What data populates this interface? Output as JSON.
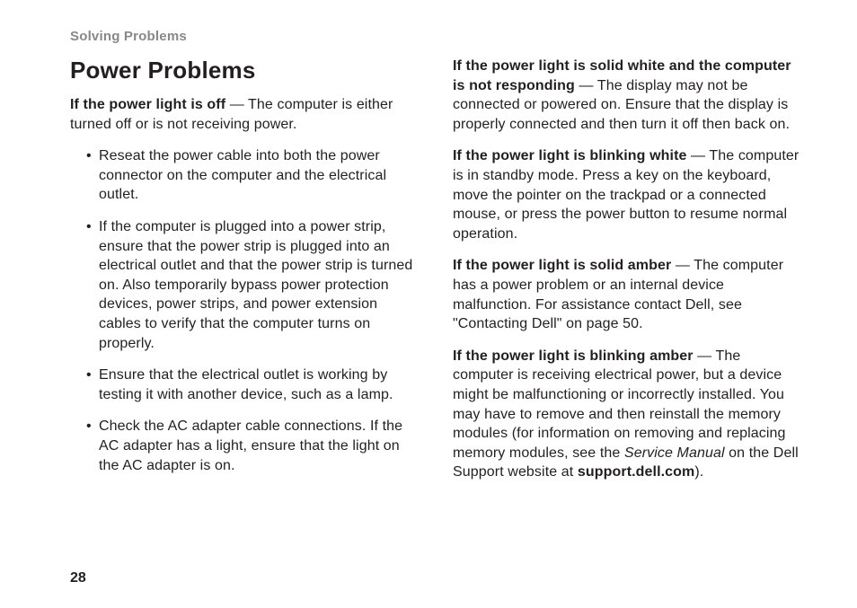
{
  "header": "Solving Problems",
  "pageNumber": "28",
  "title": "Power Problems",
  "left": {
    "intro_bold": "If the power light is off",
    "intro_rest": " — The computer is either turned off or is not receiving power.",
    "bullets": [
      "Reseat the power cable into both the power connector on the computer and the electrical outlet.",
      "If the computer is plugged into a power strip, ensure that the power strip is plugged into an electrical outlet and that the power strip is turned on. Also temporarily bypass power protection devices, power strips, and power extension cables to verify that the computer turns on properly.",
      "Ensure that the electrical outlet is working by testing it with another device, such as a lamp.",
      "Check the AC adapter cable connections. If the AC adapter has a light, ensure that the light on the AC adapter is on."
    ]
  },
  "right": {
    "p1_bold": "If the power light is solid white and the computer is not responding",
    "p1_rest": " — The display may not be connected or powered on. Ensure that the display is properly connected and then turn it off then back on.",
    "p2_bold": "If the power light is blinking white",
    "p2_rest": " — The computer is in standby mode. Press a key on the keyboard, move the pointer on the trackpad or a connected mouse, or press the power button to resume normal operation.",
    "p3_bold": "If the power light is solid amber",
    "p3_rest": " — The computer has a power problem or an internal device malfunction. For assistance contact Dell, see \"Contacting Dell\" on page 50.",
    "p4_bold": "If the power light is blinking amber",
    "p4_rest_a": " — The computer is receiving electrical power, but a device might be malfunctioning or incorrectly installed. You may have to remove and then reinstall the memory modules (for information on removing and replacing memory modules, see the ",
    "p4_italic": "Service Manual",
    "p4_rest_b": " on the Dell Support website at ",
    "p4_bold2": "support.dell.com",
    "p4_rest_c": ")."
  }
}
